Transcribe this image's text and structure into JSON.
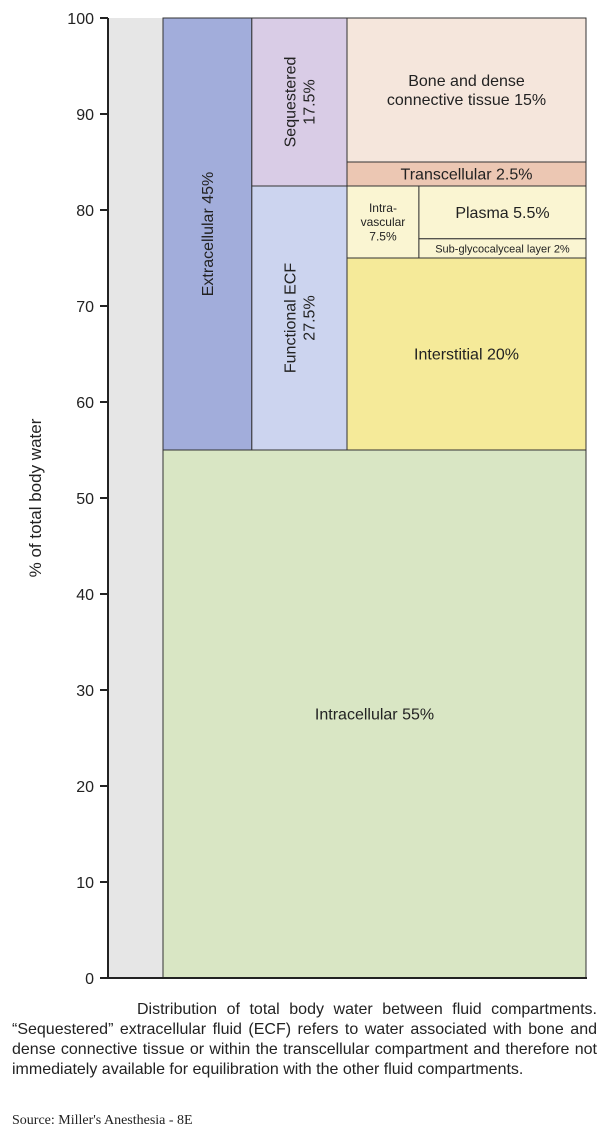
{
  "chart_data": {
    "type": "table",
    "ylabel": "% of total body water",
    "ylim": [
      0,
      100
    ],
    "yticks": [
      0,
      10,
      20,
      30,
      40,
      50,
      60,
      70,
      80,
      90,
      100
    ],
    "blocks": [
      {
        "id": "intracellular",
        "lines": [
          "Intracellular 55%"
        ],
        "value": 55,
        "y0": 0,
        "y1": 55,
        "x0": 0,
        "x1": 1,
        "color": "#d9e6c4",
        "orient": "h"
      },
      {
        "id": "extracellular",
        "lines": [
          "Extracellular 45%"
        ],
        "value": 45,
        "y0": 55,
        "y1": 100,
        "x0": 0,
        "x1": 0.21,
        "color": "#a2addb",
        "orient": "v"
      },
      {
        "id": "sequestered",
        "lines": [
          "Sequestered",
          "17.5%"
        ],
        "value": 17.5,
        "y0": 82.5,
        "y1": 100,
        "x0": 0.21,
        "x1": 0.435,
        "color": "#d9cce6",
        "orient": "v"
      },
      {
        "id": "functional-ecf",
        "lines": [
          "Functional ECF",
          "27.5%"
        ],
        "value": 27.5,
        "y0": 55,
        "y1": 82.5,
        "x0": 0.21,
        "x1": 0.435,
        "color": "#ccd4ef",
        "orient": "v"
      },
      {
        "id": "bone",
        "lines": [
          "Bone and dense",
          "connective tissue 15%"
        ],
        "value": 15,
        "y0": 85,
        "y1": 100,
        "x0": 0.435,
        "x1": 1,
        "color": "#f5e6dc",
        "orient": "h"
      },
      {
        "id": "transcellular",
        "lines": [
          "Transcellular 2.5%"
        ],
        "value": 2.5,
        "y0": 82.5,
        "y1": 85,
        "x0": 0.435,
        "x1": 1,
        "color": "#ecc7b3",
        "orient": "h"
      },
      {
        "id": "intravascular",
        "lines": [
          "Intra-",
          "vascular",
          "7.5%"
        ],
        "value": 7.5,
        "y0": 75,
        "y1": 82.5,
        "x0": 0.435,
        "x1": 0.605,
        "color": "#faf5d2",
        "orient": "h"
      },
      {
        "id": "plasma",
        "lines": [
          "Plasma 5.5%"
        ],
        "value": 5.5,
        "y0": 77,
        "y1": 82.5,
        "x0": 0.605,
        "x1": 1,
        "color": "#faf5d2",
        "orient": "h"
      },
      {
        "id": "sub-glycocalyceal",
        "lines": [
          "Sub-glycocalyceal layer 2%"
        ],
        "value": 2,
        "y0": 75,
        "y1": 77,
        "x0": 0.605,
        "x1": 1,
        "color": "#faf5d2",
        "orient": "h"
      },
      {
        "id": "interstitial",
        "lines": [
          "Interstitial 20%"
        ],
        "value": 20,
        "y0": 55,
        "y1": 75,
        "x0": 0.435,
        "x1": 1,
        "color": "#f5ea99",
        "orient": "h"
      }
    ]
  },
  "caption": "Distribution of total body water between fluid compartments. “Sequestered” extracellular fluid (ECF) refers to water associated with bone and dense connective tissue or within the transcellular compartment and therefore not immediately available for equilibration with the other fluid compartments.",
  "source": "Source: Miller's Anesthesia - 8E"
}
